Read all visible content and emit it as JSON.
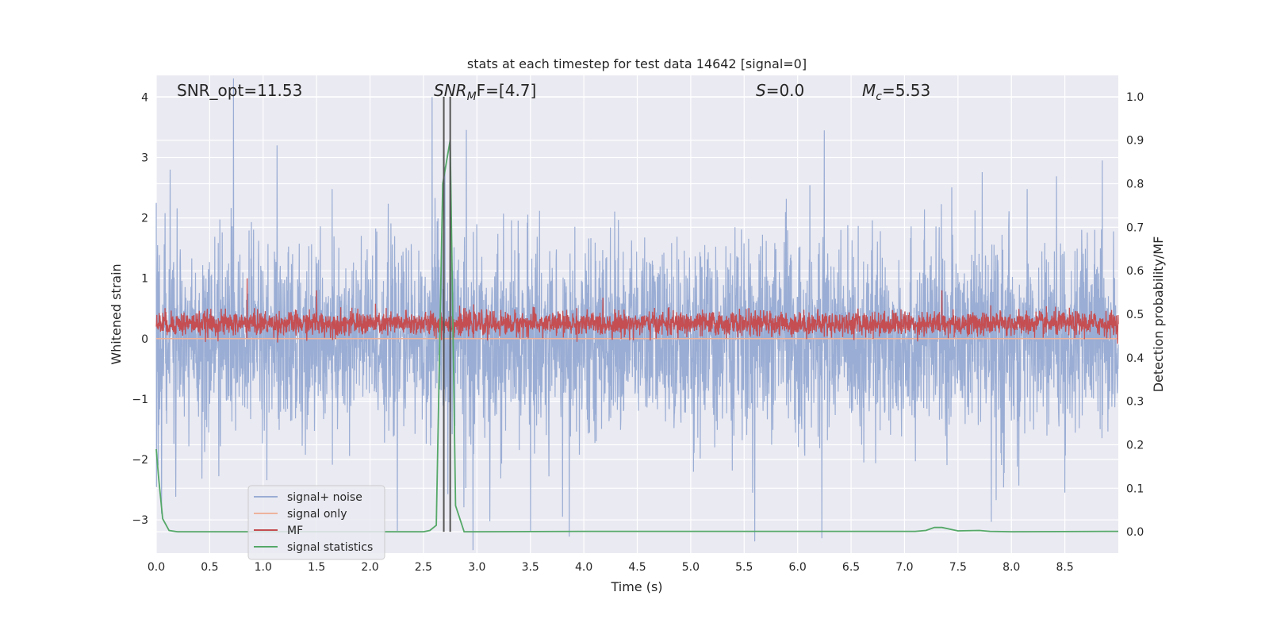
{
  "chart_data": {
    "type": "line",
    "title": "stats at each timestep for test data 14642 [signal=0]",
    "xlabel": "Time (s)",
    "ylabel": "Whitened strain",
    "ylabel_right": "Detection probability/MF",
    "xlim": [
      0.0,
      9.0
    ],
    "ylim": [
      -3.55,
      4.36
    ],
    "ylim_right": [
      -0.049,
      1.049
    ],
    "xticks": [
      "0.0",
      "0.5",
      "1.0",
      "1.5",
      "2.0",
      "2.5",
      "3.0",
      "3.5",
      "4.0",
      "4.5",
      "5.0",
      "5.5",
      "6.0",
      "6.5",
      "7.0",
      "7.5",
      "8.0",
      "8.5"
    ],
    "yticks": [
      "4",
      "3",
      "2",
      "1",
      "0",
      "−1",
      "−2",
      "−3"
    ],
    "yticks_right": [
      "1.0",
      "0.9",
      "0.8",
      "0.7",
      "0.6",
      "0.5",
      "0.4",
      "0.3",
      "0.2",
      "0.1",
      "0.0"
    ],
    "grid": true,
    "legend": {
      "placement": "lower-left",
      "entries": [
        {
          "label": "signal+ noise",
          "color": "#9aadd4"
        },
        {
          "label": "signal only",
          "color": "#eeb39c"
        },
        {
          "label": "MF",
          "color": "#c44e52"
        },
        {
          "label": "signal statistics",
          "color": "#55a868"
        }
      ]
    },
    "annotations": {
      "snr_opt": "SNR_opt=11.53",
      "snr_mf_main": "SNR",
      "snr_mf_sub": "M",
      "snr_mf_rest": "F=[4.7]",
      "s_italic": "S",
      "s_rest": "=0.0",
      "mc_main": "M",
      "mc_sub": "c",
      "mc_rest": "=5.53"
    },
    "series": [
      {
        "name": "signal+ noise",
        "axis": "left",
        "kind": "noise",
        "mean": 0.0,
        "std": 0.75,
        "n_points": 3600,
        "notable_peaks": [
          [
            0.13,
            2.8
          ],
          [
            1.13,
            3.2
          ],
          [
            2.58,
            4.0
          ],
          [
            2.7,
            2.85
          ],
          [
            6.25,
            3.45
          ],
          [
            8.85,
            2.95
          ],
          [
            3.5,
            -3.2
          ],
          [
            0.05,
            -2.9
          ],
          [
            3.8,
            -2.95
          ],
          [
            5.58,
            -2.55
          ]
        ]
      },
      {
        "name": "signal only",
        "axis": "left",
        "x": [
          0.0,
          9.0
        ],
        "y": [
          0.0,
          0.0
        ]
      },
      {
        "name": "MF",
        "axis": "left",
        "kind": "noise",
        "mean": 0.25,
        "std": 0.1,
        "n_points": 3600,
        "notable_peaks": [
          [
            0.85,
            1.0
          ],
          [
            2.75,
            0.85
          ],
          [
            7.35,
            0.8
          ],
          [
            1.5,
            0.8
          ]
        ]
      },
      {
        "name": "signal statistics",
        "axis": "right",
        "x": [
          0.0,
          0.02,
          0.06,
          0.12,
          0.2,
          0.5,
          1.0,
          2.0,
          2.5,
          2.56,
          2.62,
          2.68,
          2.75,
          2.8,
          2.88,
          3.0,
          4.0,
          7.1,
          7.2,
          7.28,
          7.35,
          7.5,
          7.7,
          7.8,
          8.0,
          9.0
        ],
        "y": [
          0.19,
          0.13,
          0.03,
          0.003,
          0.0,
          0.0,
          0.0,
          0.0,
          0.0,
          0.003,
          0.015,
          0.8,
          0.9,
          0.06,
          0.0,
          0.0,
          0.001,
          0.001,
          0.003,
          0.01,
          0.01,
          0.002,
          0.003,
          0.001,
          0.0,
          0.001
        ]
      },
      {
        "name": "detection markers",
        "axis": "right",
        "kind": "vlines",
        "x": [
          2.69,
          2.75
        ],
        "ymin": 0.0,
        "ymax": 1.0,
        "color": "#555555"
      }
    ]
  }
}
